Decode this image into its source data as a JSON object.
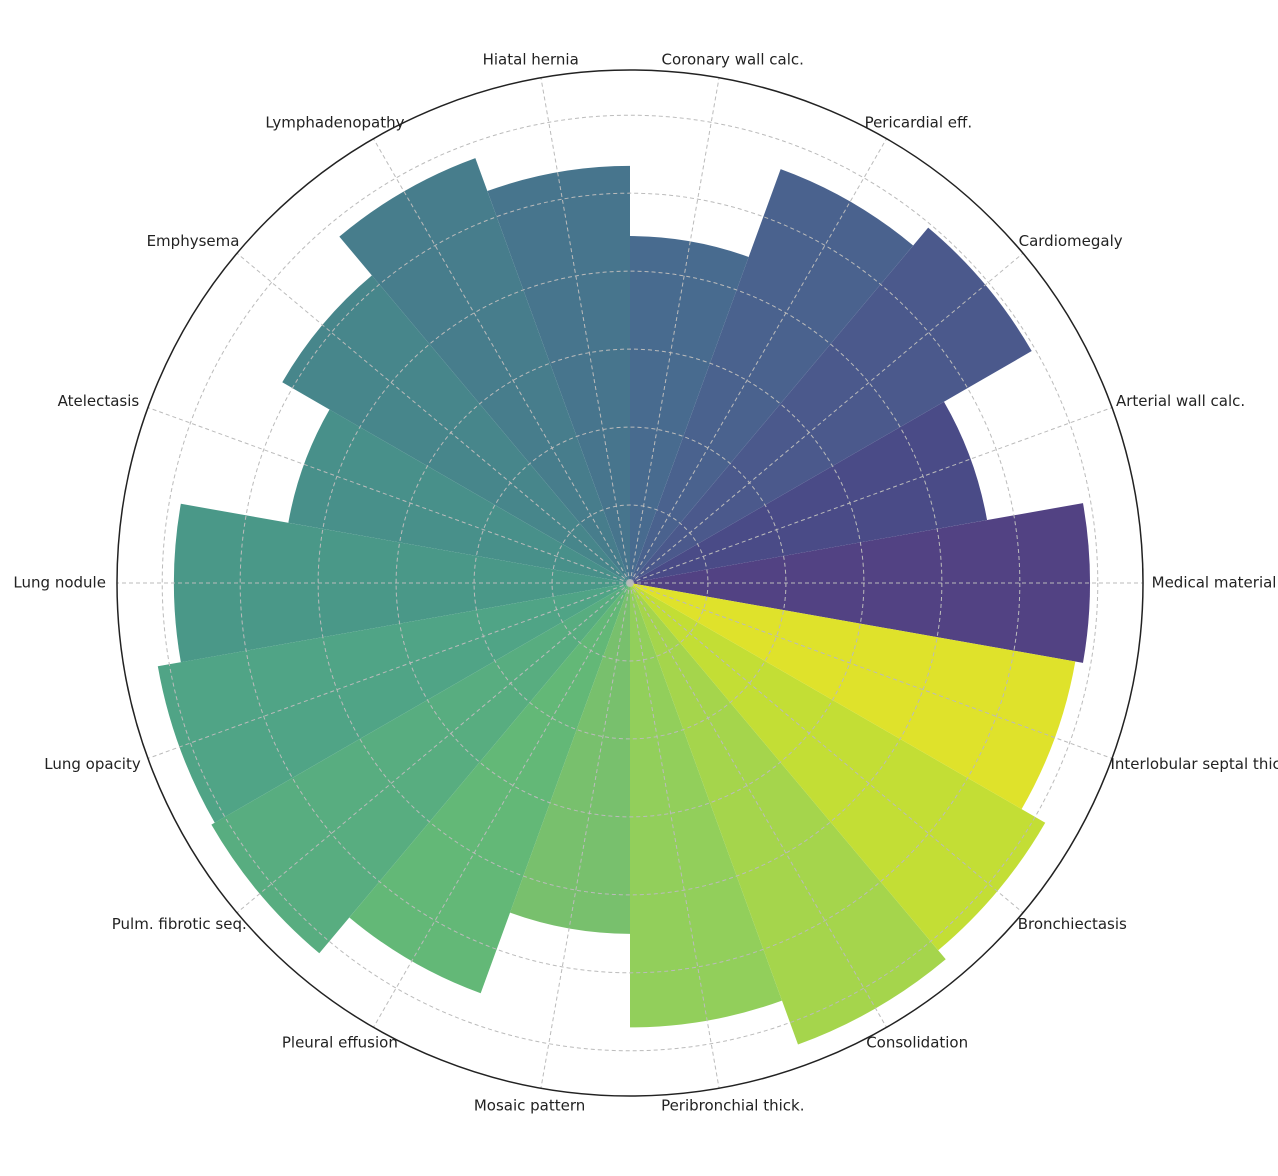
{
  "chart_data": {
    "type": "polar_bar",
    "categories": [
      "Medical material",
      "Arterial wall calc.",
      "Cardiomegaly",
      "Pericardial eff.",
      "Coronary wall calc.",
      "Hiatal hernia",
      "Lymphadenopathy",
      "Emphysema",
      "Atelectasis",
      "Lung nodule",
      "Lung opacity",
      "Pulm. fibrotic seq.",
      "Pleural effusion",
      "Mosaic pattern",
      "Peribronchial thick.",
      "Consolidation",
      "Bronchiectasis",
      "Interlobular septal thick."
    ],
    "values": [
      0.59,
      0.465,
      0.595,
      0.565,
      0.445,
      0.535,
      0.58,
      0.515,
      0.445,
      0.585,
      0.615,
      0.62,
      0.56,
      0.45,
      0.57,
      0.63,
      0.615,
      0.58
    ],
    "colors": [
      "#524283",
      "#4a4b87",
      "#4b598c",
      "#4a628e",
      "#486b8f",
      "#47758d",
      "#477d8c",
      "#47868b",
      "#48908a",
      "#4a9888",
      "#50a486",
      "#58ad80",
      "#63b877",
      "#78c06d",
      "#92cf5b",
      "#a5d54c",
      "#c3de35",
      "#dfe22b"
    ],
    "ylim": [
      0,
      0.658
    ],
    "yticks": [
      0.1,
      0.2,
      0.3,
      0.4,
      0.5,
      0.6
    ],
    "grid": true
  }
}
